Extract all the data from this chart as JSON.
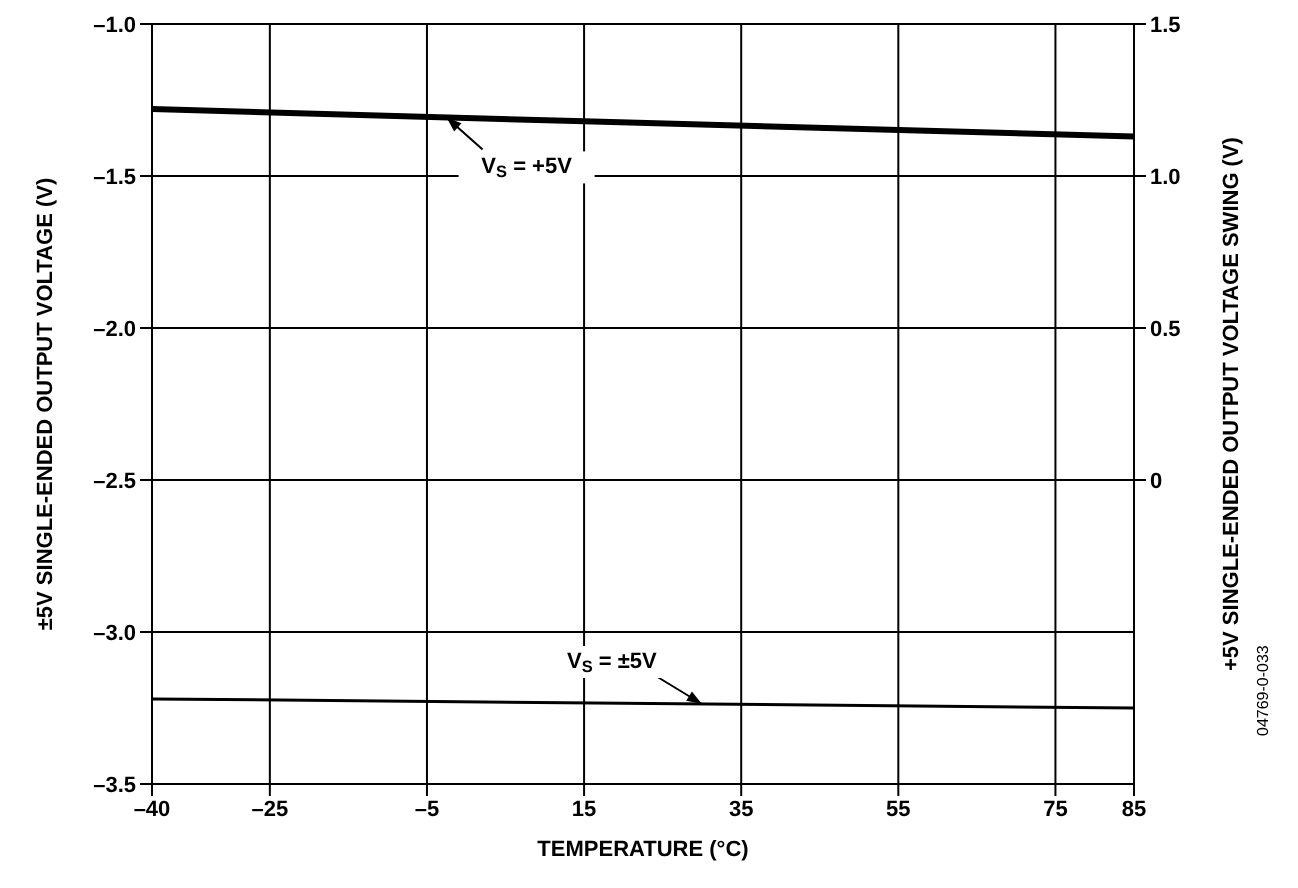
{
  "chart_data": {
    "type": "line",
    "xlabel": "TEMPERATURE (°C)",
    "ylabel": "±5V SINGLE-ENDED OUTPUT VOLTAGE (V)",
    "y2label": "+5V SINGLE-ENDED OUTPUT VOLTAGE SWING (V)",
    "xlim": [
      -40,
      85
    ],
    "xticks": [
      {
        "value": -40,
        "label": "–40"
      },
      {
        "value": -25,
        "label": "–25"
      },
      {
        "value": -5,
        "label": "–5"
      },
      15,
      35,
      55,
      75,
      85
    ],
    "ylim": [
      -3.5,
      -1.0
    ],
    "yticks": [
      {
        "value": -3.5,
        "label": "–3.5"
      },
      {
        "value": -3.0,
        "label": "–3.0"
      },
      {
        "value": -2.5,
        "label": "–2.5"
      },
      {
        "value": -2.0,
        "label": "–2.0"
      },
      {
        "value": -1.5,
        "label": "–1.5"
      },
      {
        "value": -1.0,
        "label": "–1.0"
      }
    ],
    "y2lim": [
      -1.0,
      1.5
    ],
    "y2ticks": [
      0,
      {
        "value": 0.5,
        "label": "0.5"
      },
      {
        "value": 1.0,
        "label": "1.0"
      },
      {
        "value": 1.5,
        "label": "1.5"
      }
    ],
    "grid": true,
    "marker": "none",
    "line_style": "solid",
    "series": [
      {
        "color": "#000000",
        "axis": "y2",
        "x": [
          -40,
          15,
          85
        ],
        "values": [
          1.22,
          1.18,
          1.13
        ]
      },
      {
        "color": "#000000",
        "axis": "y",
        "x": [
          -40,
          85
        ],
        "values": [
          -3.22,
          -3.25
        ]
      }
    ],
    "annotations": [
      "V$_{S}$ = +5V",
      "V$_{S}$ = ±5V",
      "04769-0-033"
    ]
  }
}
